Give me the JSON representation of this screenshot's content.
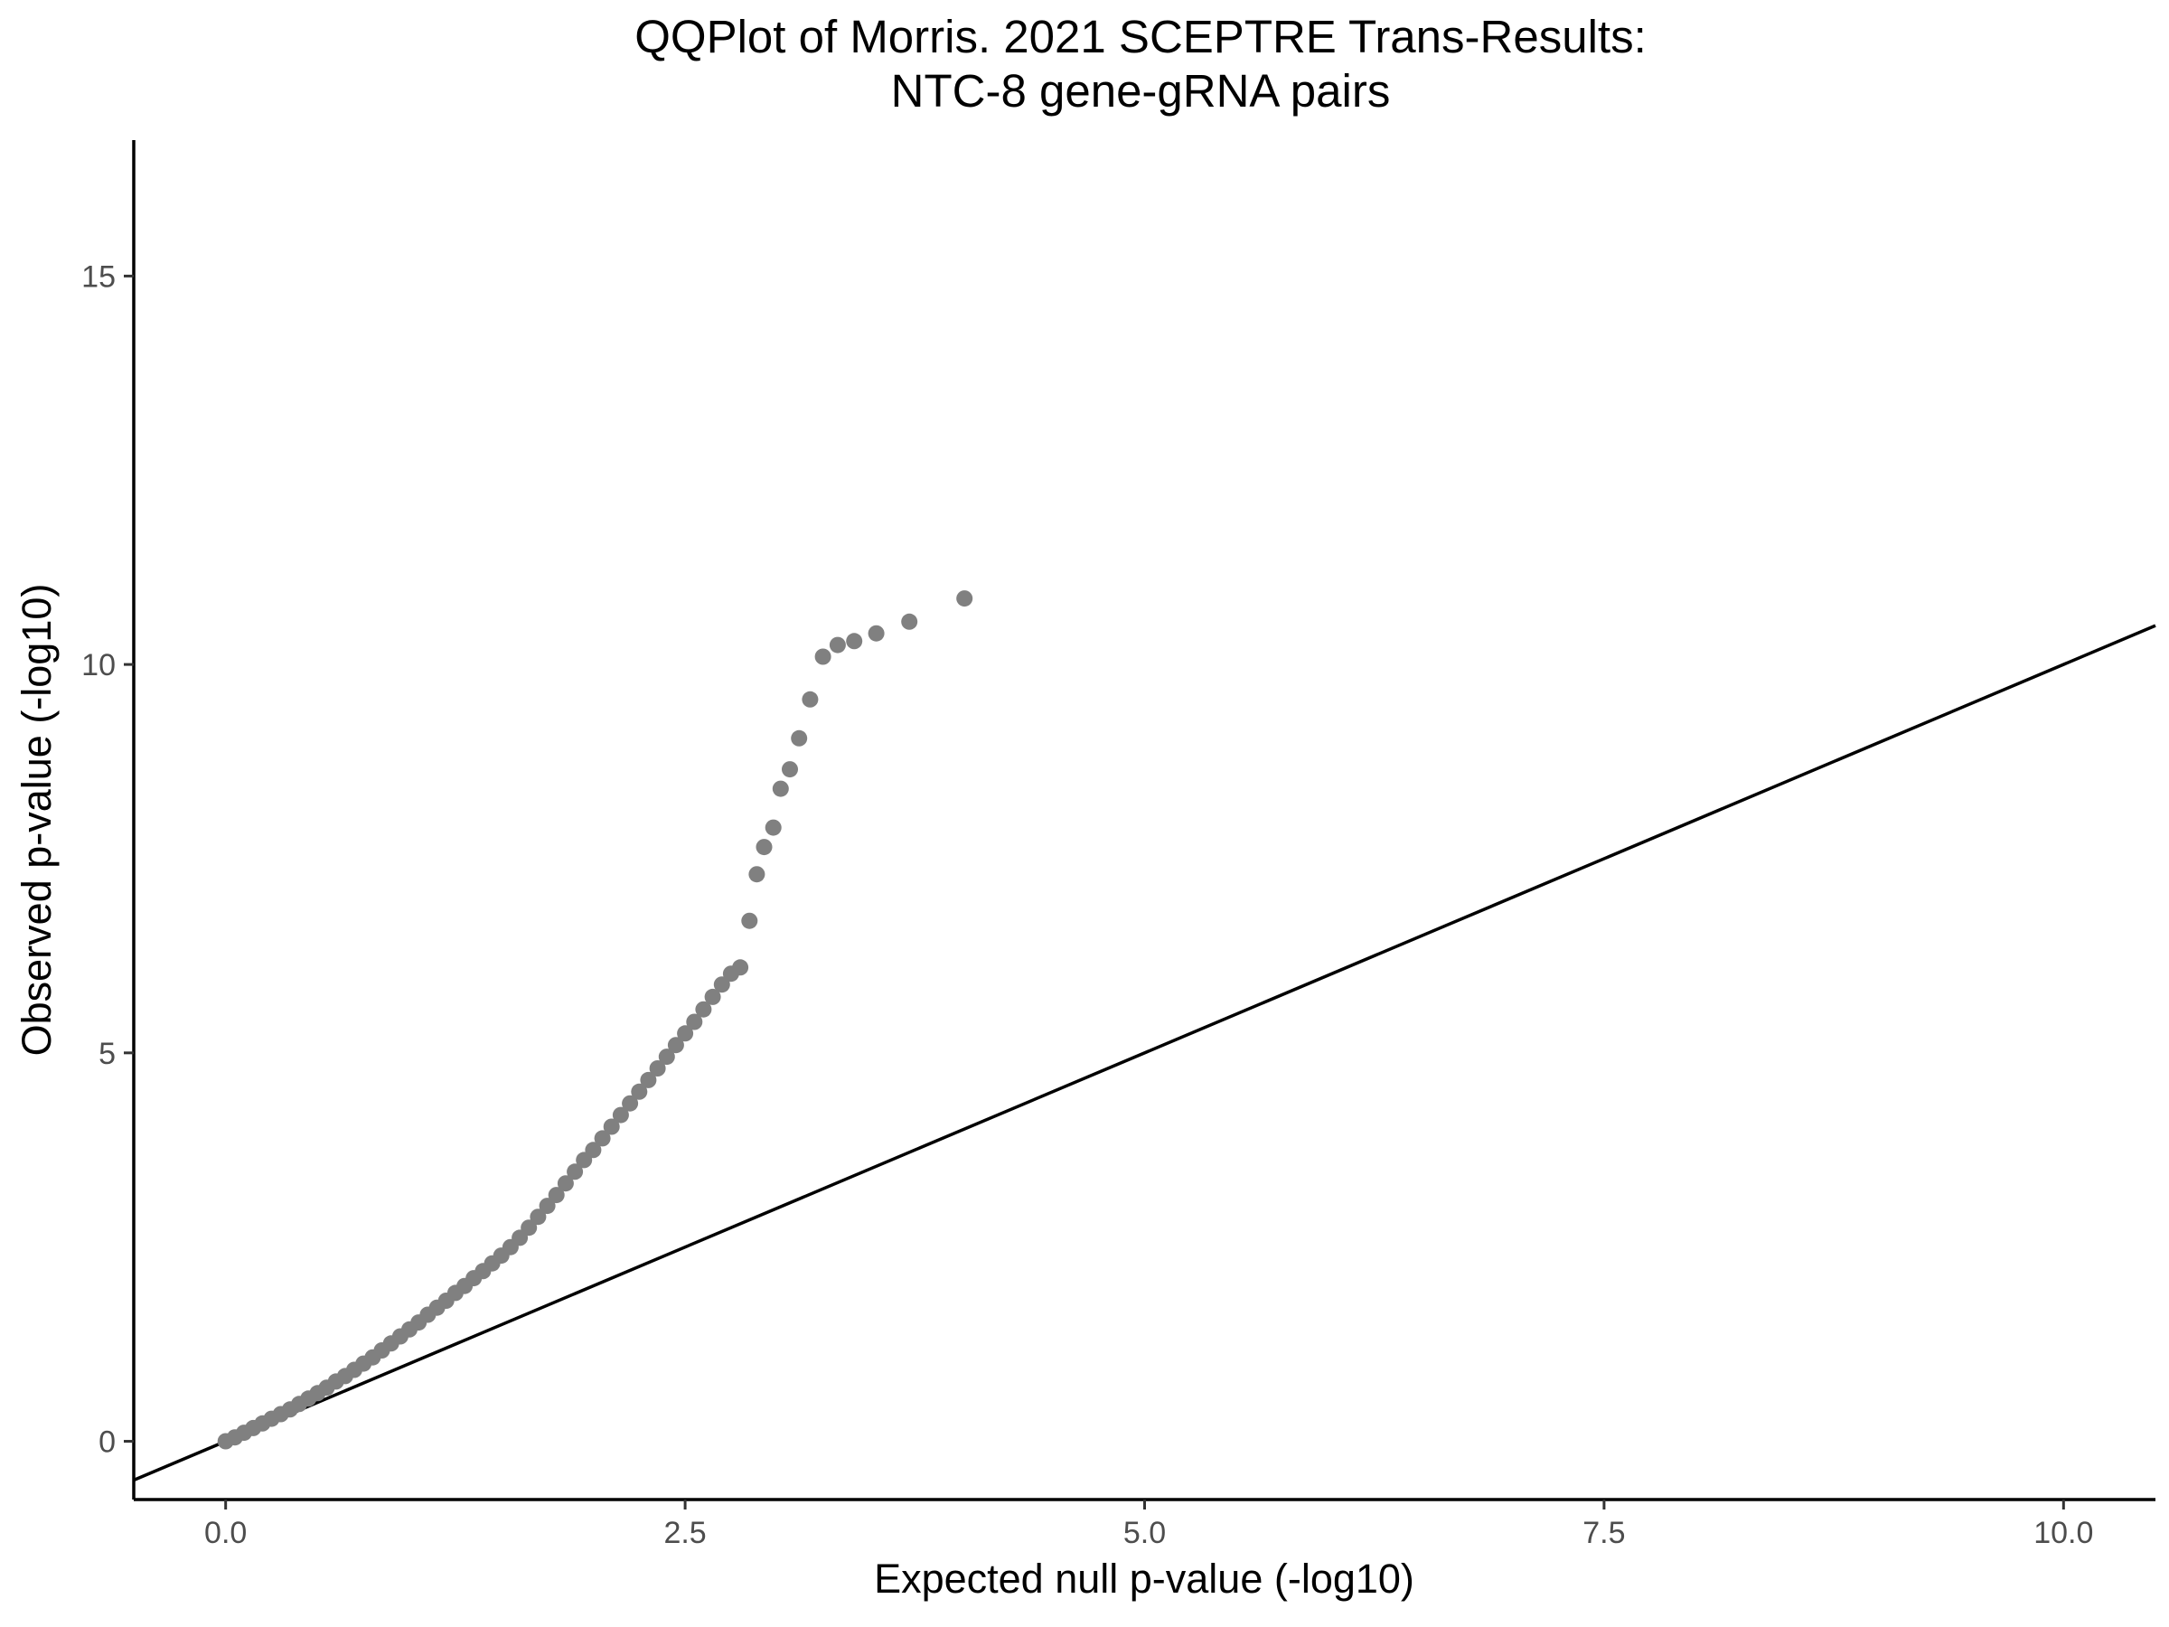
{
  "chart_data": {
    "type": "scatter",
    "title": "QQPlot of Morris. 2021 SCEPTRE Trans-Results:",
    "subtitle": "NTC-8 gene-gRNA pairs",
    "xlabel": "Expected null p-value (-log10)",
    "ylabel": "Observed p-value (-log10)",
    "xlim": [
      -0.5,
      10.5
    ],
    "ylim": [
      -0.75,
      16.75
    ],
    "x_ticks": [
      0.0,
      2.5,
      5.0,
      7.5,
      10.0
    ],
    "x_tick_labels": [
      "0.0",
      "2.5",
      "5.0",
      "7.5",
      "10.0"
    ],
    "y_ticks": [
      0,
      5,
      10,
      15
    ],
    "y_tick_labels": [
      "0",
      "5",
      "10",
      "15"
    ],
    "grid": false,
    "legend": "none",
    "reference_line": {
      "slope": 1,
      "intercept": 0,
      "color": "#000000"
    },
    "point_color": "#808080",
    "series": [
      {
        "x": [
          0.0,
          0.05,
          0.1,
          0.15,
          0.2,
          0.25,
          0.3,
          0.35,
          0.4,
          0.45,
          0.5,
          0.55,
          0.6,
          0.65,
          0.7,
          0.75,
          0.8,
          0.85,
          0.9,
          0.95,
          1.0,
          1.05,
          1.1,
          1.15,
          1.2,
          1.25,
          1.3,
          1.35,
          1.4,
          1.45,
          1.5,
          1.55,
          1.6,
          1.65,
          1.7,
          1.75,
          1.8,
          1.85,
          1.9,
          1.95,
          2.0,
          2.05,
          2.1,
          2.15,
          2.2,
          2.25,
          2.3,
          2.35,
          2.4,
          2.45,
          2.5,
          2.55,
          2.6,
          2.65,
          2.7,
          2.75,
          2.8,
          2.85,
          2.89,
          2.93,
          2.98,
          3.02,
          3.07,
          3.12,
          3.18,
          3.25,
          3.33,
          3.42,
          3.54,
          3.72,
          4.02
        ],
        "y": [
          0.0,
          0.05,
          0.11,
          0.17,
          0.23,
          0.29,
          0.35,
          0.41,
          0.48,
          0.55,
          0.62,
          0.69,
          0.77,
          0.84,
          0.92,
          1.0,
          1.08,
          1.17,
          1.26,
          1.35,
          1.44,
          1.53,
          1.63,
          1.72,
          1.81,
          1.91,
          2.0,
          2.1,
          2.19,
          2.29,
          2.39,
          2.5,
          2.62,
          2.75,
          2.89,
          3.03,
          3.17,
          3.32,
          3.47,
          3.62,
          3.75,
          3.9,
          4.05,
          4.2,
          4.35,
          4.5,
          4.65,
          4.8,
          4.95,
          5.1,
          5.25,
          5.4,
          5.56,
          5.72,
          5.88,
          6.02,
          6.1,
          6.7,
          7.3,
          7.65,
          7.9,
          8.4,
          8.65,
          9.05,
          9.55,
          10.1,
          10.25,
          10.3,
          10.4,
          10.55,
          10.85
        ]
      }
    ]
  }
}
